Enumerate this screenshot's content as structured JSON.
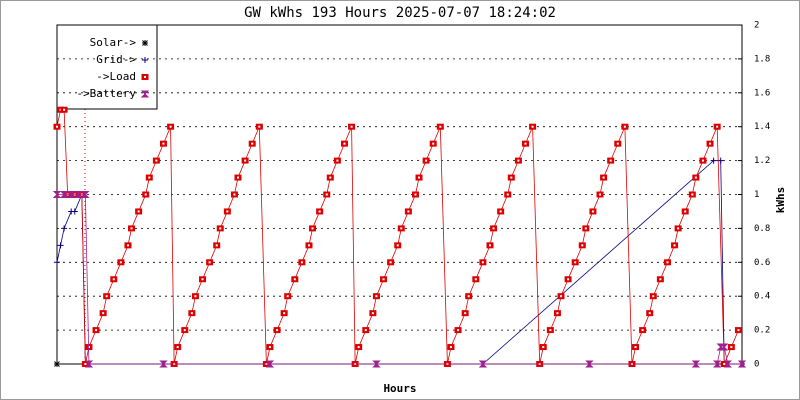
{
  "chart_data": {
    "type": "line",
    "title": "GW kWhs 193 Hours 2025-07-07 18:24:02",
    "x_label": "Hours",
    "y_label": "kWhs",
    "xlim": [
      0,
      193
    ],
    "ylim": [
      0,
      2
    ],
    "yticks": [
      0,
      0.2,
      0.4,
      0.6,
      0.8,
      1,
      1.2,
      1.4,
      1.6,
      1.8,
      2
    ],
    "grid": true,
    "legend": "upper left",
    "series": [
      {
        "name": "Solar->",
        "color": "#000000",
        "marker": "star",
        "x": [
          0,
          193
        ],
        "values": [
          0,
          0
        ]
      },
      {
        "name": "Grid->",
        "color": "#000080",
        "marker": "plus",
        "x": [
          0,
          1,
          2,
          4,
          5,
          7,
          8,
          60,
          120,
          185,
          187,
          188,
          193
        ],
        "values": [
          0.6,
          0.7,
          0.8,
          0.9,
          0.9,
          1,
          0,
          0,
          0,
          1.2,
          1.2,
          0,
          0
        ]
      },
      {
        "name": "->Load",
        "color": "#dd0000",
        "marker": "square",
        "x": [
          0,
          1,
          2,
          3,
          5,
          7,
          8,
          9,
          11,
          13,
          14,
          16,
          18,
          20,
          21,
          23,
          25,
          26,
          28,
          30,
          32,
          33,
          34,
          36,
          38,
          39,
          41,
          43,
          45,
          46,
          48,
          50,
          51,
          53,
          55,
          57,
          59,
          60,
          62,
          64,
          65,
          67,
          69,
          71,
          72,
          74,
          76,
          77,
          79,
          81,
          83,
          84,
          85,
          87,
          89,
          90,
          92,
          94,
          96,
          97,
          99,
          101,
          102,
          104,
          106,
          108,
          110,
          111,
          113,
          115,
          116,
          118,
          120,
          122,
          123,
          125,
          127,
          128,
          130,
          132,
          134,
          136,
          137,
          139,
          141,
          142,
          144,
          146,
          148,
          149,
          151,
          153,
          154,
          156,
          158,
          160,
          162,
          163,
          165,
          167,
          168,
          170,
          172,
          174,
          175,
          177,
          179,
          180,
          182,
          184,
          186,
          188,
          190,
          192
        ],
        "values": [
          1.4,
          1.5,
          1.5,
          1,
          1,
          1,
          0,
          0.1,
          0.2,
          0.3,
          0.4,
          0.5,
          0.6,
          0.7,
          0.8,
          0.9,
          1,
          1.1,
          1.2,
          1.3,
          1.4,
          0,
          0.1,
          0.2,
          0.3,
          0.4,
          0.5,
          0.6,
          0.7,
          0.8,
          0.9,
          1,
          1.1,
          1.2,
          1.3,
          1.4,
          0,
          0.1,
          0.2,
          0.3,
          0.4,
          0.5,
          0.6,
          0.7,
          0.8,
          0.9,
          1,
          1.1,
          1.2,
          1.3,
          1.4,
          0,
          0.1,
          0.2,
          0.3,
          0.4,
          0.5,
          0.6,
          0.7,
          0.8,
          0.9,
          1,
          1.1,
          1.2,
          1.3,
          1.4,
          0,
          0.1,
          0.2,
          0.3,
          0.4,
          0.5,
          0.6,
          0.7,
          0.8,
          0.9,
          1,
          1.1,
          1.2,
          1.3,
          1.4,
          0,
          0.1,
          0.2,
          0.3,
          0.4,
          0.5,
          0.6,
          0.7,
          0.8,
          0.9,
          1,
          1.1,
          1.2,
          1.3,
          1.4,
          0,
          0.1,
          0.2,
          0.3,
          0.4,
          0.5,
          0.6,
          0.7,
          0.8,
          0.9,
          1,
          1.1,
          1.2,
          1.3,
          1.4,
          0,
          0.1,
          0.2
        ]
      },
      {
        "name": "->Battery",
        "color": "#a0208f",
        "marker": "hourglass",
        "x": [
          0,
          2,
          4,
          6,
          8,
          9,
          30,
          60,
          90,
          120,
          150,
          180,
          186,
          187,
          188,
          189,
          193
        ],
        "values": [
          1,
          1,
          1,
          1,
          1,
          0,
          0,
          0,
          0,
          0,
          0,
          0,
          0,
          0.1,
          0.1,
          0,
          0
        ]
      }
    ]
  }
}
